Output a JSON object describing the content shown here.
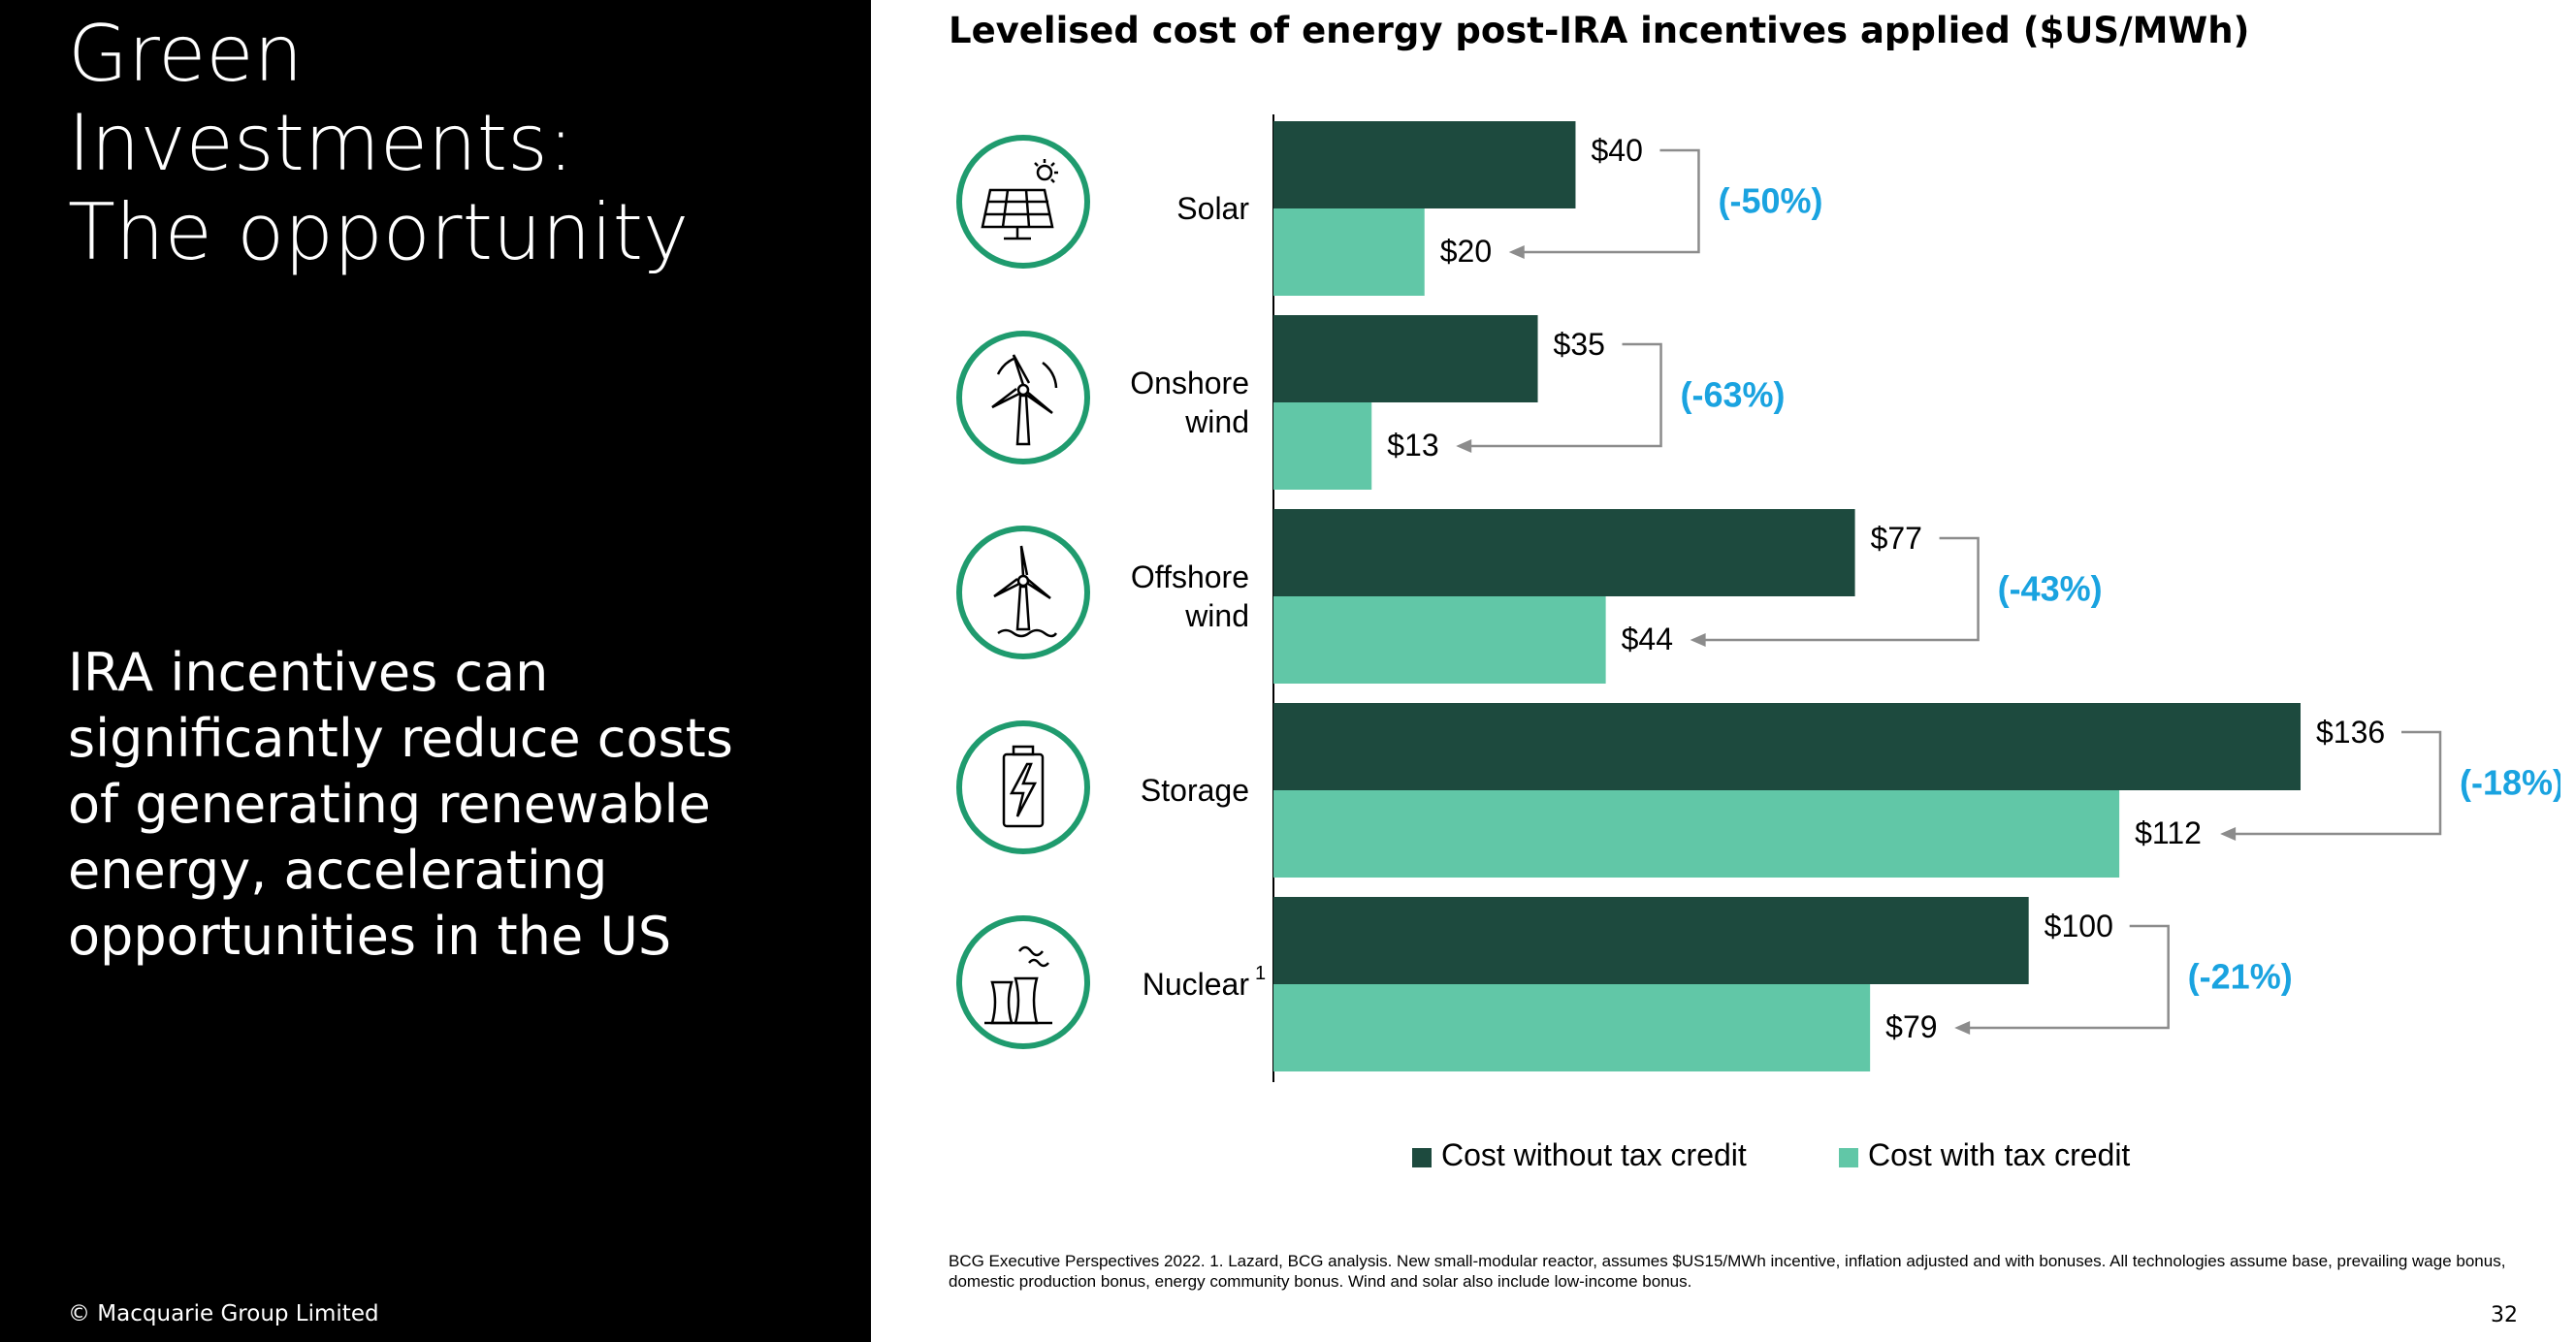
{
  "slide": {
    "title_lines": [
      "Green",
      "Investments:",
      "The opportunity"
    ],
    "subtitle": "IRA incentives can significantly reduce costs of generating renewable energy, accelerating opportunities in the US",
    "copyright": "© Macquarie Group Limited",
    "page_number": "32",
    "footnote": "BCG Executive Perspectives 2022.  1. Lazard, BCG analysis. New small-modular reactor, assumes $US15/MWh incentive, inflation adjusted and with bonuses. All technologies assume base, prevailing wage bonus, domestic production bonus, energy community bonus. Wind and solar also include low-income bonus."
  },
  "icons": [
    "solar-panel-icon",
    "onshore-wind-icon",
    "offshore-wind-icon",
    "battery-icon",
    "nuclear-plant-icon"
  ],
  "chart_data": {
    "type": "bar",
    "orientation": "horizontal",
    "title": "Levelised cost of energy post-IRA incentives applied ($US/MWh)",
    "categories": [
      "Solar",
      "Onshore wind",
      "Offshore wind",
      "Storage",
      "Nuclear"
    ],
    "category_footnotes": [
      "",
      "",
      "",
      "",
      "1"
    ],
    "series": [
      {
        "name": "Cost without tax credit",
        "color": "#1d4a3e",
        "values": [
          40,
          35,
          77,
          136,
          100
        ],
        "labels": [
          "$40",
          "$35",
          "$77",
          "$136",
          "$100"
        ]
      },
      {
        "name": "Cost with tax credit",
        "color": "#61c7a7",
        "values": [
          20,
          13,
          44,
          112,
          79
        ],
        "labels": [
          "$20",
          "$13",
          "$44",
          "$112",
          "$79"
        ]
      }
    ],
    "changes": [
      "(-50%)",
      "(-63%)",
      "(-43%)",
      "(-18%)",
      "(-21%)"
    ],
    "change_color": "#1aa3e0",
    "xlim": [
      0,
      136
    ],
    "legend_position": "bottom",
    "grid": false
  }
}
